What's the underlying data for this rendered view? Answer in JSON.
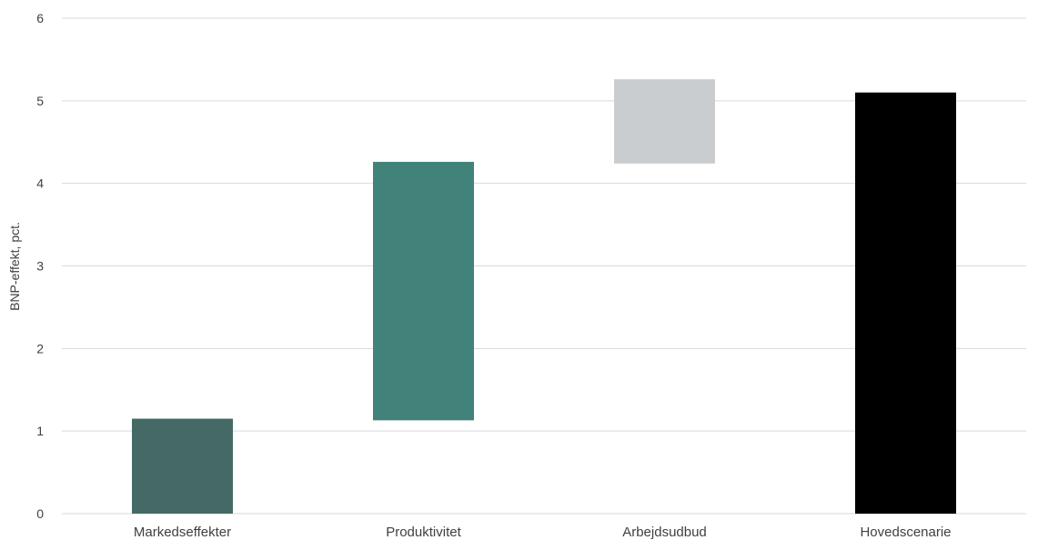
{
  "chart_data": {
    "type": "bar",
    "subtype": "waterfall",
    "categories": [
      "Markedseffekter",
      "Produktivitet",
      "Arbejdsudbud",
      "Hovedscenarie"
    ],
    "series": [
      {
        "bars": [
          {
            "category": "Markedseffekter",
            "base": 0,
            "top": 1.15,
            "color": "#456a65"
          },
          {
            "category": "Produktivitet",
            "base": 1.13,
            "top": 4.26,
            "color": "#41827a"
          },
          {
            "category": "Arbejdsudbud",
            "base": 4.24,
            "top": 5.26,
            "color": "#c9cdd0"
          },
          {
            "category": "Hovedscenarie",
            "base": 0,
            "top": 5.1,
            "color": "#000000"
          }
        ]
      }
    ],
    "ylabel": "BNP-effekt, pct.",
    "xlabel": "",
    "ylim": [
      0,
      6
    ],
    "yticks": [
      0,
      1,
      2,
      3,
      4,
      5,
      6
    ],
    "grid": true,
    "legend": "none",
    "gridline_color": "#d9d9d9",
    "text_color": "#404040"
  }
}
